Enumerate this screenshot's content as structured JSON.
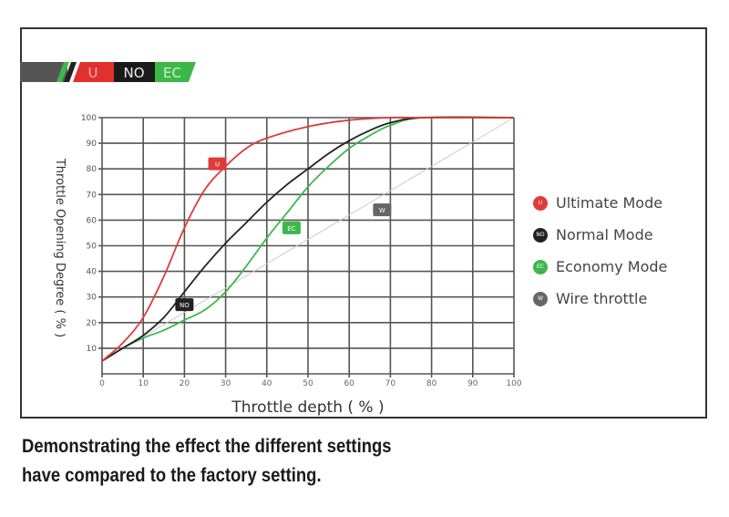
{
  "banner": {
    "labels": [
      "U",
      "NO",
      "EC"
    ]
  },
  "chart_data": {
    "type": "line",
    "title": "",
    "xlabel": "Throttle depth ( % )",
    "ylabel": "Throttle Opening Degree ( % )",
    "xlim": [
      0,
      100
    ],
    "ylim": [
      0,
      100
    ],
    "x_ticks": [
      0,
      10,
      20,
      30,
      40,
      50,
      60,
      70,
      80,
      90,
      100
    ],
    "y_ticks": [
      10,
      20,
      30,
      40,
      50,
      60,
      70,
      80,
      90,
      100
    ],
    "grid": true,
    "legend_placement": "right",
    "series": [
      {
        "name": "Ultimate Mode",
        "badge": "U",
        "color": "#e03a3a",
        "label_at": [
          28,
          82
        ],
        "points": [
          [
            0,
            5
          ],
          [
            5,
            12
          ],
          [
            10,
            22
          ],
          [
            15,
            38
          ],
          [
            20,
            57
          ],
          [
            25,
            72
          ],
          [
            30,
            81
          ],
          [
            35,
            88
          ],
          [
            40,
            92
          ],
          [
            50,
            96.5
          ],
          [
            60,
            99
          ],
          [
            70,
            100
          ],
          [
            78,
            100
          ],
          [
            100,
            100
          ]
        ]
      },
      {
        "name": "Normal Mode",
        "badge": "NO",
        "color": "#222222",
        "label_at": [
          20,
          27
        ],
        "points": [
          [
            0,
            5
          ],
          [
            5,
            10
          ],
          [
            10,
            15
          ],
          [
            15,
            22
          ],
          [
            20,
            32
          ],
          [
            25,
            42
          ],
          [
            30,
            51
          ],
          [
            35,
            59
          ],
          [
            40,
            67
          ],
          [
            45,
            74
          ],
          [
            50,
            80
          ],
          [
            55,
            86
          ],
          [
            60,
            91
          ],
          [
            65,
            95
          ],
          [
            70,
            98
          ],
          [
            78,
            100
          ],
          [
            100,
            100
          ]
        ]
      },
      {
        "name": "Economy Mode",
        "badge": "EC",
        "color": "#3cb84a",
        "label_at": [
          46,
          57
        ],
        "points": [
          [
            0,
            5
          ],
          [
            5,
            10
          ],
          [
            10,
            14
          ],
          [
            15,
            17
          ],
          [
            20,
            21
          ],
          [
            25,
            25
          ],
          [
            30,
            32
          ],
          [
            35,
            42
          ],
          [
            40,
            53
          ],
          [
            45,
            63
          ],
          [
            50,
            73
          ],
          [
            55,
            81
          ],
          [
            60,
            88
          ],
          [
            65,
            93
          ],
          [
            70,
            97
          ],
          [
            78,
            100
          ],
          [
            100,
            100
          ]
        ]
      },
      {
        "name": "Wire throttle",
        "badge": "W",
        "color": "#666666",
        "label_at": [
          68,
          64
        ],
        "points": [
          [
            0,
            5
          ],
          [
            100,
            100
          ]
        ]
      }
    ]
  },
  "caption": {
    "line1": "Demonstrating the effect the different settings",
    "line2": "have compared to the factory setting."
  }
}
